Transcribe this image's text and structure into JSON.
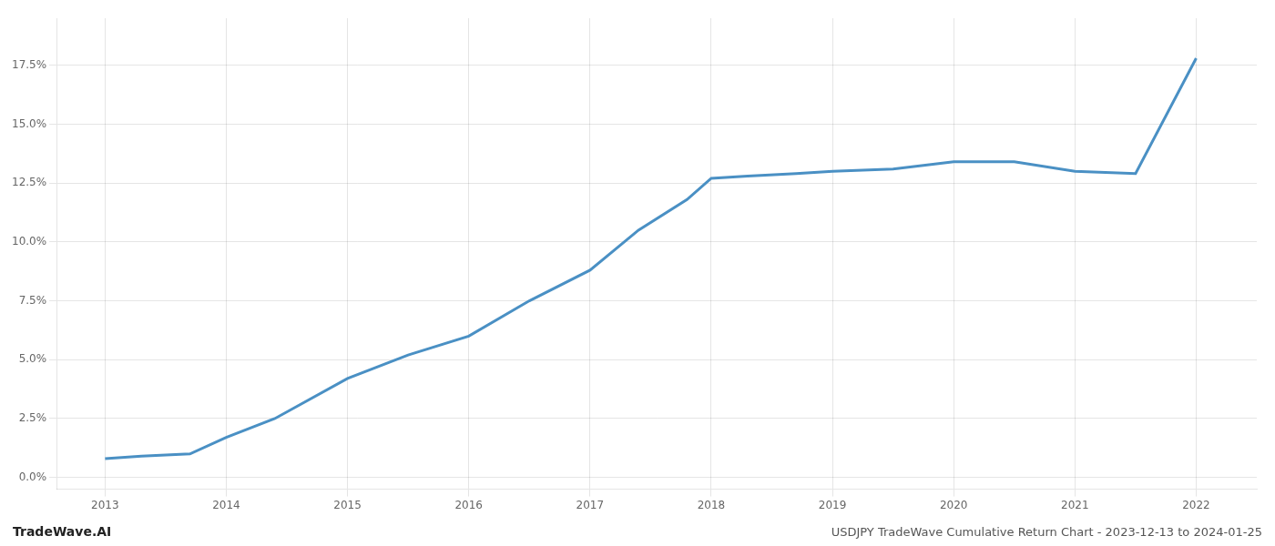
{
  "chart_data": {
    "type": "line",
    "title": "USDJPY TradeWave Cumulative Return Chart - 2023-12-13 to 2024-01-25",
    "annotations": [
      "TradeWave.AI"
    ],
    "x": [
      2013.0,
      2013.3,
      2013.7,
      2014.0,
      2014.4,
      2015.0,
      2015.5,
      2016.0,
      2016.5,
      2017.0,
      2017.4,
      2017.8,
      2018.0,
      2018.3,
      2018.7,
      2019.0,
      2019.5,
      2020.0,
      2020.5,
      2021.0,
      2021.5,
      2022.0
    ],
    "values": [
      0.008,
      0.009,
      0.01,
      0.017,
      0.025,
      0.042,
      0.052,
      0.06,
      0.075,
      0.088,
      0.105,
      0.118,
      0.127,
      0.128,
      0.129,
      0.13,
      0.131,
      0.134,
      0.134,
      0.13,
      0.129,
      0.178
    ],
    "color": "#4a90c4",
    "xlim": [
      2012.6,
      2022.5
    ],
    "xticks": [
      2013,
      2014,
      2015,
      2016,
      2017,
      2018,
      2019,
      2020,
      2021,
      2022
    ],
    "ylim": [
      -0.005,
      0.195
    ],
    "yticks": [
      {
        "value": 0.0,
        "label": "0.0%"
      },
      {
        "value": 0.025,
        "label": "2.5%"
      },
      {
        "value": 0.05,
        "label": "5.0%"
      },
      {
        "value": 0.075,
        "label": "7.5%"
      },
      {
        "value": 0.1,
        "label": "10.0%"
      },
      {
        "value": 0.125,
        "label": "12.5%"
      },
      {
        "value": 0.15,
        "label": "15.0%"
      },
      {
        "value": 0.175,
        "label": "17.5%"
      }
    ],
    "grid": true
  }
}
